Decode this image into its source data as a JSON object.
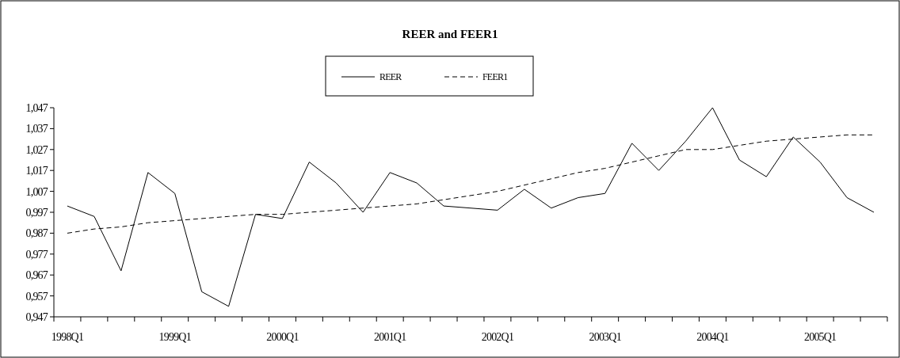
{
  "chart_data": {
    "type": "line",
    "title": "REER and FEER1",
    "categories": [
      "1998Q1",
      null,
      null,
      null,
      "1999Q1",
      null,
      null,
      null,
      "2000Q1",
      null,
      null,
      null,
      "2001Q1",
      null,
      null,
      null,
      "2002Q1",
      null,
      null,
      null,
      "2003Q1",
      null,
      null,
      null,
      "2004Q1",
      null,
      null,
      null,
      "2005Q1",
      null,
      null
    ],
    "series": [
      {
        "name": "REER",
        "color": "#000000",
        "line_style": "solid",
        "values": [
          1.0,
          0.995,
          0.969,
          1.016,
          1.006,
          0.959,
          0.952,
          0.996,
          0.994,
          1.021,
          1.011,
          0.997,
          1.016,
          1.011,
          1.0,
          0.999,
          0.998,
          1.008,
          0.999,
          1.004,
          1.006,
          1.03,
          1.017,
          1.031,
          1.047,
          1.022,
          1.014,
          1.033,
          1.021,
          1.004,
          0.997
        ]
      },
      {
        "name": "FEER1",
        "color": "#000000",
        "line_style": "dashed",
        "values": [
          0.987,
          0.989,
          0.99,
          0.992,
          0.993,
          0.994,
          0.995,
          0.996,
          0.996,
          0.997,
          0.998,
          0.999,
          1.0,
          1.001,
          1.003,
          1.005,
          1.007,
          1.01,
          1.013,
          1.016,
          1.018,
          1.021,
          1.024,
          1.027,
          1.027,
          1.029,
          1.031,
          1.032,
          1.033,
          1.034,
          1.034
        ]
      }
    ],
    "ylim": [
      0.947,
      1.047
    ],
    "yticks": [
      {
        "value": 0.947,
        "label": "0,947"
      },
      {
        "value": 0.957,
        "label": "0,957"
      },
      {
        "value": 0.967,
        "label": "0,967"
      },
      {
        "value": 0.977,
        "label": "0,977"
      },
      {
        "value": 0.987,
        "label": "0,987"
      },
      {
        "value": 0.997,
        "label": "0,997"
      },
      {
        "value": 1.007,
        "label": "1,007"
      },
      {
        "value": 1.017,
        "label": "1,017"
      },
      {
        "value": 1.027,
        "label": "1,027"
      },
      {
        "value": 1.037,
        "label": "1,037"
      },
      {
        "value": 1.047,
        "label": "1,047"
      }
    ],
    "legend": "top"
  }
}
